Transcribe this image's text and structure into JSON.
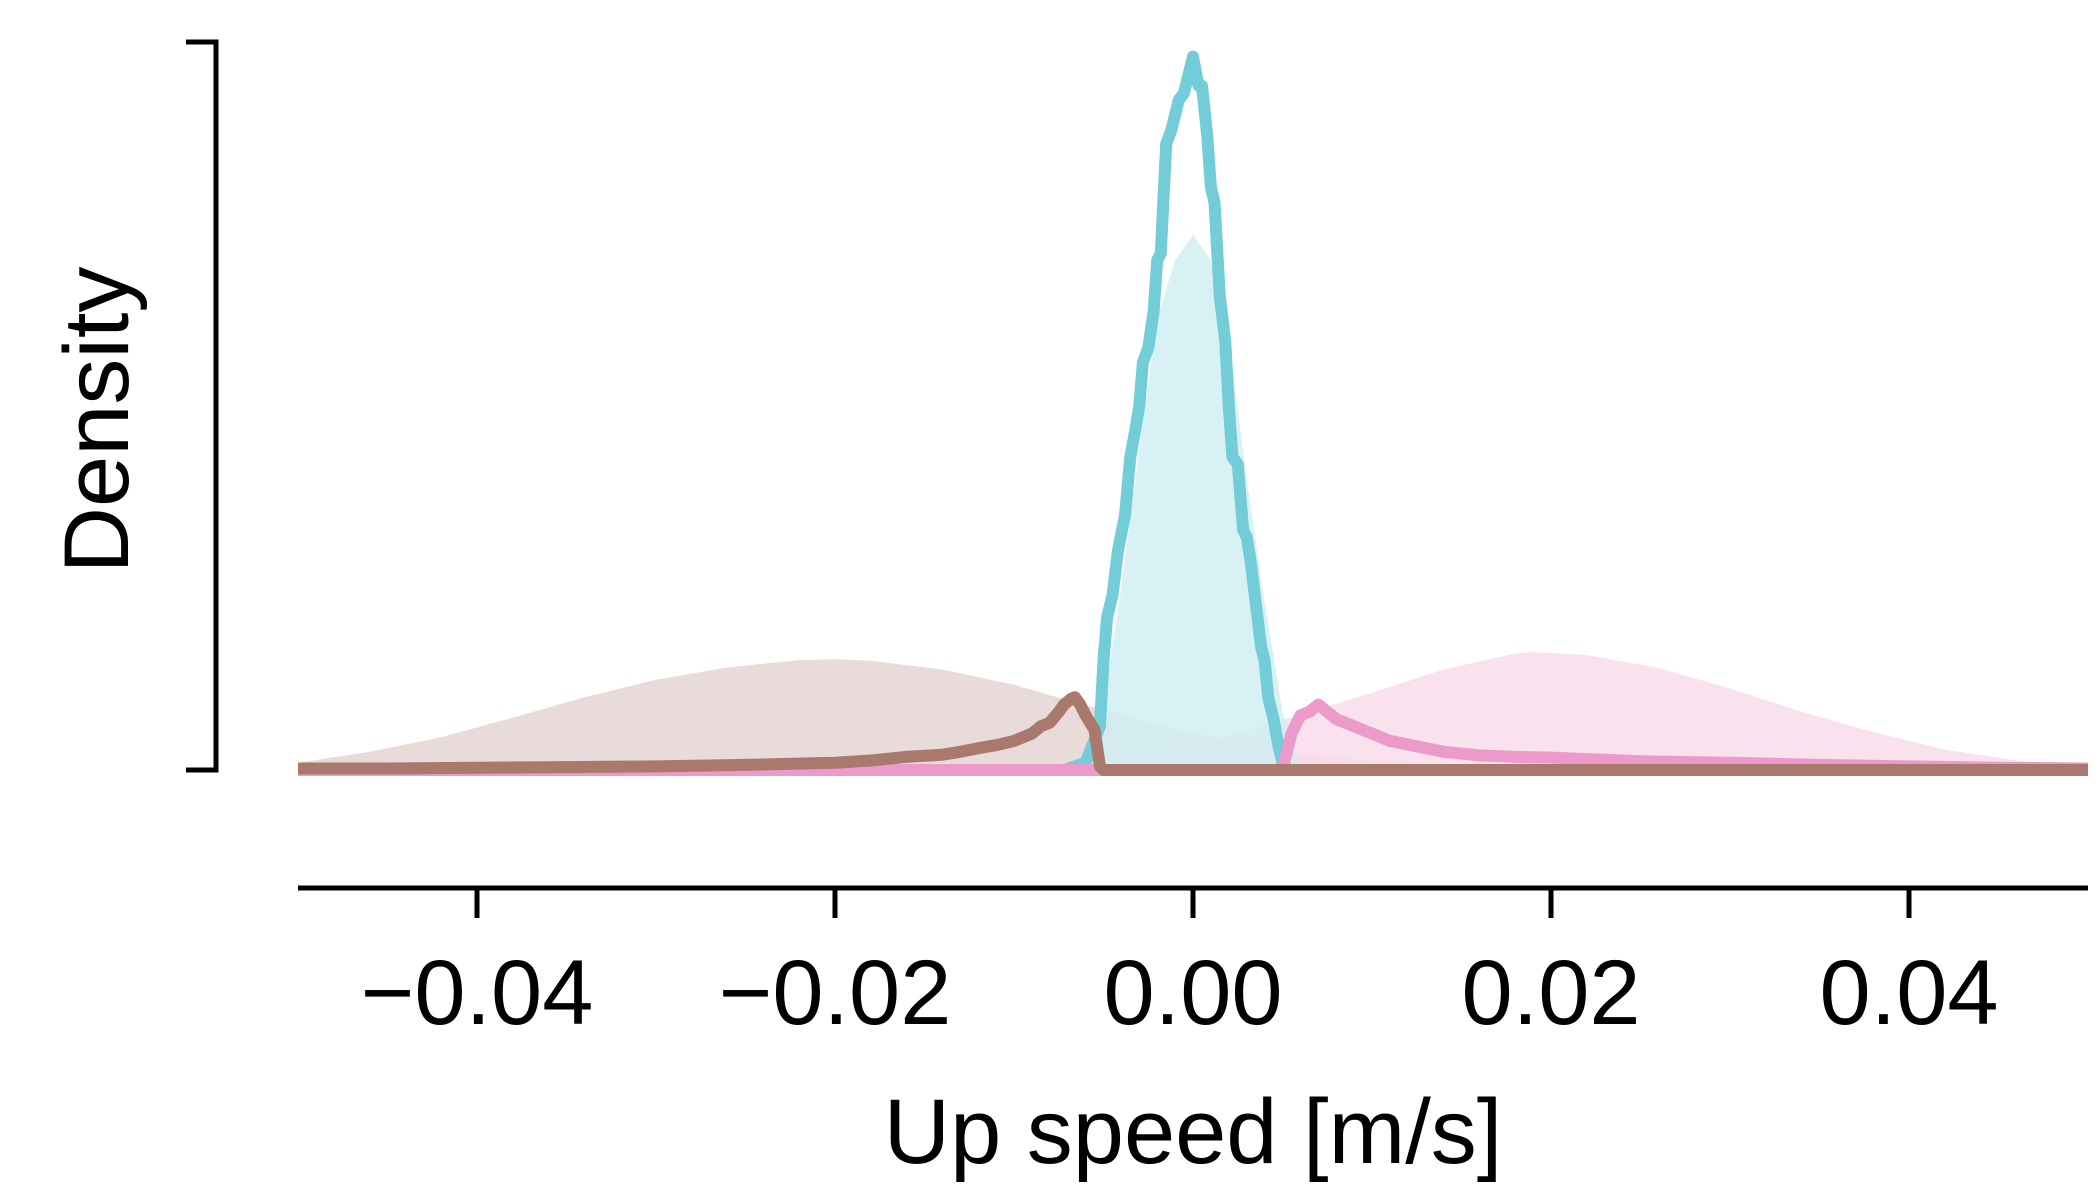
{
  "chart_data": {
    "type": "area",
    "xlabel": "Up speed [m/s]",
    "ylabel": "Density",
    "xlim": [
      -0.05,
      0.05
    ],
    "ylim": [
      0,
      1.0
    ],
    "x_ticks": [
      -0.04,
      -0.02,
      0.0,
      0.02,
      0.04
    ],
    "x_tick_labels": [
      "−0.04",
      "−0.02",
      "0.00",
      "0.02",
      "0.04"
    ],
    "y_ticks": [],
    "grid": false,
    "legend": "none",
    "series": [
      {
        "color": "#e5d5d2",
        "kind": "area",
        "x": [
          -0.05,
          -0.046,
          -0.042,
          -0.038,
          -0.034,
          -0.03,
          -0.026,
          -0.022,
          -0.02,
          -0.018,
          -0.014,
          -0.01,
          -0.006,
          -0.002,
          0.002,
          0.006,
          0.01,
          0.014,
          0.018,
          0.022,
          0.026,
          0.03,
          0.034,
          0.038,
          0.042,
          0.046,
          0.05
        ],
        "y": [
          0.01,
          0.025,
          0.045,
          0.072,
          0.1,
          0.124,
          0.141,
          0.151,
          0.152,
          0.15,
          0.138,
          0.117,
          0.089,
          0.063,
          0.04,
          0.023,
          0.012,
          0.006,
          0.003,
          0.001,
          0.0,
          0.0,
          0.0,
          0.0,
          0.0,
          0.0,
          0.0
        ]
      },
      {
        "color": "#f8dcea",
        "kind": "area",
        "x": [
          -0.05,
          -0.03,
          -0.02,
          -0.01,
          -0.006,
          -0.002,
          0.002,
          0.006,
          0.01,
          0.014,
          0.018,
          0.019,
          0.022,
          0.026,
          0.03,
          0.034,
          0.038,
          0.042,
          0.046,
          0.05
        ],
        "y": [
          0.0,
          0.0,
          0.001,
          0.005,
          0.012,
          0.026,
          0.048,
          0.076,
          0.106,
          0.138,
          0.16,
          0.162,
          0.158,
          0.14,
          0.112,
          0.08,
          0.052,
          0.028,
          0.013,
          0.005
        ]
      },
      {
        "color": "#d1eff2",
        "kind": "area",
        "x": [
          -0.05,
          -0.006,
          -0.005,
          -0.004,
          -0.003,
          -0.002,
          -0.001,
          0.0,
          0.001,
          0.002,
          0.003,
          0.004,
          0.005,
          0.006,
          0.05
        ],
        "y": [
          0.0,
          0.0,
          0.09,
          0.25,
          0.44,
          0.62,
          0.7,
          0.735,
          0.7,
          0.59,
          0.4,
          0.23,
          0.08,
          0.0,
          0.0
        ]
      },
      {
        "color": "#72cdd8",
        "kind": "line",
        "x": [
          -0.05,
          -0.0072,
          -0.006,
          -0.0052,
          -0.005,
          -0.0048,
          -0.0045,
          -0.0042,
          -0.0038,
          -0.0035,
          -0.0032,
          -0.003,
          -0.0028,
          -0.0025,
          -0.0022,
          -0.002,
          -0.0018,
          -0.0015,
          -0.0012,
          -0.001,
          -0.0008,
          -0.0005,
          -0.0003,
          0.0,
          0.0003,
          0.0005,
          0.0008,
          0.001,
          0.0012,
          0.0015,
          0.0018,
          0.002,
          0.0022,
          0.0025,
          0.0028,
          0.003,
          0.0032,
          0.0035,
          0.0038,
          0.004,
          0.0042,
          0.0045,
          0.0048,
          0.005,
          0.0052,
          0.0058,
          0.0062,
          0.05
        ],
        "y": [
          0.0,
          0.0,
          0.01,
          0.06,
          0.15,
          0.21,
          0.24,
          0.3,
          0.35,
          0.43,
          0.47,
          0.5,
          0.56,
          0.58,
          0.63,
          0.7,
          0.71,
          0.86,
          0.88,
          0.9,
          0.92,
          0.93,
          0.95,
          0.98,
          0.94,
          0.94,
          0.87,
          0.8,
          0.78,
          0.65,
          0.59,
          0.5,
          0.43,
          0.42,
          0.33,
          0.32,
          0.29,
          0.23,
          0.17,
          0.15,
          0.1,
          0.07,
          0.03,
          0.01,
          0.0,
          0.0,
          0.0,
          0.0
        ]
      },
      {
        "color": "#ec9ac9",
        "kind": "line",
        "x": [
          -0.05,
          -0.03,
          -0.01,
          0.005,
          0.0055,
          0.006,
          0.0065,
          0.007,
          0.0075,
          0.008,
          0.009,
          0.01,
          0.011,
          0.012,
          0.014,
          0.016,
          0.018,
          0.02,
          0.025,
          0.03,
          0.035,
          0.04,
          0.045,
          0.05
        ],
        "y": [
          0.0,
          0.0,
          0.0,
          0.0,
          0.05,
          0.075,
          0.08,
          0.09,
          0.08,
          0.07,
          0.06,
          0.05,
          0.04,
          0.035,
          0.025,
          0.02,
          0.018,
          0.017,
          0.012,
          0.01,
          0.007,
          0.005,
          0.003,
          0.002
        ]
      },
      {
        "color": "#a8796c",
        "kind": "line",
        "x": [
          -0.05,
          -0.045,
          -0.04,
          -0.035,
          -0.03,
          -0.025,
          -0.02,
          -0.018,
          -0.016,
          -0.014,
          -0.013,
          -0.012,
          -0.011,
          -0.01,
          -0.009,
          -0.0085,
          -0.008,
          -0.0075,
          -0.0072,
          -0.0068,
          -0.0066,
          -0.0063,
          -0.006,
          -0.0055,
          -0.0052,
          -0.005,
          -0.004,
          0.0,
          0.01,
          0.03,
          0.05
        ],
        "y": [
          0.002,
          0.002,
          0.003,
          0.004,
          0.005,
          0.007,
          0.01,
          0.013,
          0.018,
          0.021,
          0.025,
          0.03,
          0.034,
          0.04,
          0.05,
          0.06,
          0.065,
          0.08,
          0.09,
          0.098,
          0.1,
          0.09,
          0.075,
          0.055,
          0.005,
          0.0,
          0.0,
          0.0,
          0.0,
          0.0,
          0.0
        ]
      }
    ]
  }
}
